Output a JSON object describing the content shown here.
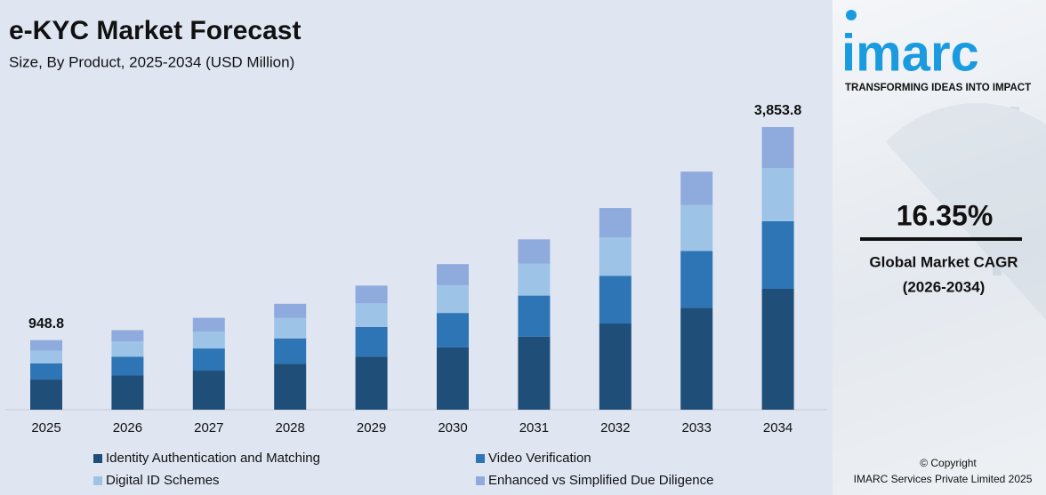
{
  "chart_data": {
    "type": "stacked-bar",
    "title": "e-KYC Market Forecast",
    "subtitle": "Size, By Product, 2025-2034 (USD Million)",
    "categories": [
      "2025",
      "2026",
      "2027",
      "2028",
      "2029",
      "2030",
      "2031",
      "2032",
      "2033",
      "2034"
    ],
    "series": [
      {
        "name": "Identity Authentication and Matching",
        "color": "#1f4e79",
        "values": [
          411.1,
          467,
          533,
          625,
          725,
          849,
          995,
          1175,
          1389,
          1648.1
        ]
      },
      {
        "name": "Video Verification",
        "color": "#2e75b6",
        "values": [
          221.4,
          256,
          302,
          347,
          403,
          470,
          561,
          650,
          775,
          921.0
        ]
      },
      {
        "name": "Digital ID Schemes",
        "color": "#9dc3e6",
        "values": [
          173.9,
          210,
          230,
          278,
          322,
          379,
          434,
          525,
          627,
          727.2
        ]
      },
      {
        "name": "Enhanced vs Simplified Due Diligence",
        "color": "#8faadc",
        "values": [
          142.4,
          151,
          188,
          194,
          242,
          287,
          332,
          400,
          455,
          557.5
        ]
      }
    ],
    "annotations": [
      {
        "category": "2025",
        "value": 948.8,
        "label": "948.8"
      },
      {
        "category": "2034",
        "value": 3853.8,
        "label": "3,853.8"
      }
    ],
    "ylim": [
      0,
      4200
    ]
  },
  "side_panel": {
    "logo": "imarc",
    "tagline": "TRANSFORMING IDEAS INTO IMPACT",
    "cagr": "16.35%",
    "cagr_label": "Global Market CAGR",
    "cagr_period": "(2026-2034)",
    "copyright": "© Copyright",
    "company": "IMARC Services Private Limited 2025"
  }
}
